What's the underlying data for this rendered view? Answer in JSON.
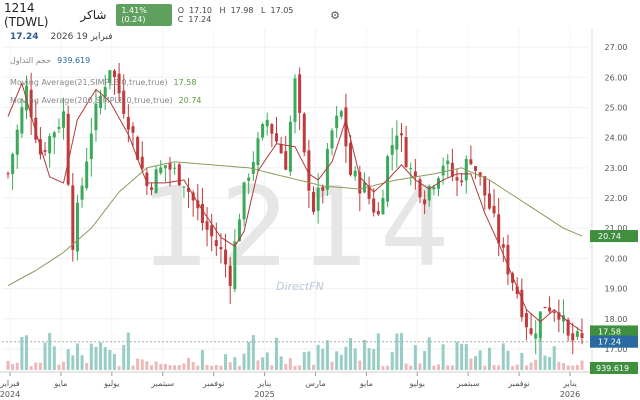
{
  "header": {
    "symbol": "1214 (TDWL)",
    "name": "شاكر",
    "change": "1.41%(0.24)",
    "open_label": "O",
    "open": "17.10",
    "high_label": "H",
    "high": "17.98",
    "low_label": "L",
    "low": "17.05",
    "close_label": "C",
    "close": "17.24",
    "gear_icon": "gear-icon"
  },
  "subheader": {
    "price": "17.24",
    "date": "فبراير 19 2026"
  },
  "legends": {
    "volume_label": "حجم التداول",
    "volume_value": "939.619",
    "ma1_label": "Moving Average(21,SIMPLE,0,true,true)",
    "ma1_value": "17.58",
    "ma2_label": "Moving Average(200,SIMPLE,0,true,true)",
    "ma2_value": "20.74"
  },
  "watermark": {
    "symbol": "1214",
    "brand": "DirectFN"
  },
  "colors": {
    "up": "#3aaa5a",
    "down": "#c0393b",
    "ma21": "#b03a3a",
    "ma200": "#8a9a5a",
    "vol": "#7dc0b5",
    "badge_green": "#3f8f3f",
    "badge_blue": "#2a6aa0"
  },
  "chart_data": {
    "type": "candlestick",
    "y_ticks": [
      "27.00",
      "26.00",
      "25.00",
      "24.00",
      "23.00",
      "22.00",
      "21.00",
      "20.00",
      "19.00",
      "18.00",
      "17.00"
    ],
    "ylim": [
      16.8,
      27.5
    ],
    "x_ticks": [
      {
        "label": "فبراير",
        "year": "2024"
      },
      {
        "label": "مايو",
        "year": ""
      },
      {
        "label": "يوليو",
        "year": ""
      },
      {
        "label": "سبتمبر",
        "year": ""
      },
      {
        "label": "نوفمبر",
        "year": ""
      },
      {
        "label": "يناير",
        "year": "2025"
      },
      {
        "label": "مارس",
        "year": ""
      },
      {
        "label": "مايو",
        "year": ""
      },
      {
        "label": "يوليو",
        "year": ""
      },
      {
        "label": "سبتمبر",
        "year": ""
      },
      {
        "label": "نوفمبر",
        "year": ""
      },
      {
        "label": "يناير",
        "year": "2026"
      }
    ],
    "price_keypoints": [
      [
        0,
        22.8
      ],
      [
        4,
        25.6
      ],
      [
        7,
        23.5
      ],
      [
        12,
        24.8
      ],
      [
        14,
        20.6
      ],
      [
        18,
        24.3
      ],
      [
        22,
        26.4
      ],
      [
        26,
        24.6
      ],
      [
        30,
        22.4
      ],
      [
        34,
        23.1
      ],
      [
        38,
        22.6
      ],
      [
        42,
        21.2
      ],
      [
        46,
        20.2
      ],
      [
        48,
        19.4
      ],
      [
        50,
        21.5
      ],
      [
        52,
        22.9
      ],
      [
        56,
        24.6
      ],
      [
        60,
        23.2
      ],
      [
        62,
        25.8
      ],
      [
        64,
        23.3
      ],
      [
        66,
        21.7
      ],
      [
        68,
        22.4
      ],
      [
        70,
        24.2
      ],
      [
        72,
        24.8
      ],
      [
        74,
        22.8
      ],
      [
        77,
        22.3
      ],
      [
        80,
        21.4
      ],
      [
        82,
        23.3
      ],
      [
        84,
        24.3
      ],
      [
        87,
        22.9
      ],
      [
        90,
        22.1
      ],
      [
        94,
        23.2
      ],
      [
        97,
        22.5
      ],
      [
        100,
        23.4
      ],
      [
        104,
        21.7
      ],
      [
        107,
        20.1
      ],
      [
        110,
        18.9
      ],
      [
        113,
        17.4
      ],
      [
        116,
        18.5
      ],
      [
        119,
        18.3
      ],
      [
        121,
        17.3
      ],
      [
        124,
        17.24
      ]
    ],
    "ma21_keypoints": [
      [
        0,
        24.7
      ],
      [
        3,
        25.8
      ],
      [
        6,
        24.2
      ],
      [
        9,
        22.7
      ],
      [
        12,
        22.5
      ],
      [
        15,
        24.6
      ],
      [
        19,
        25.6
      ],
      [
        22,
        25.2
      ],
      [
        26,
        24.1
      ],
      [
        30,
        22.5
      ],
      [
        34,
        22.5
      ],
      [
        38,
        22.6
      ],
      [
        42,
        21.6
      ],
      [
        46,
        20.7
      ],
      [
        49,
        20.4
      ],
      [
        51,
        20.9
      ],
      [
        54,
        22.9
      ],
      [
        58,
        23.8
      ],
      [
        62,
        23.7
      ],
      [
        65,
        22.8
      ],
      [
        67,
        22.6
      ],
      [
        70,
        23.2
      ],
      [
        73,
        24.6
      ],
      [
        76,
        22.7
      ],
      [
        79,
        22.2
      ],
      [
        82,
        22.6
      ],
      [
        85,
        23.1
      ],
      [
        88,
        22.6
      ],
      [
        91,
        22.3
      ],
      [
        94,
        22.6
      ],
      [
        97,
        22.8
      ],
      [
        100,
        22.8
      ],
      [
        103,
        21.5
      ],
      [
        106,
        20.5
      ],
      [
        109,
        19.4
      ],
      [
        112,
        18.3
      ],
      [
        115,
        17.9
      ],
      [
        118,
        18.3
      ],
      [
        121,
        17.9
      ],
      [
        124,
        17.58
      ]
    ],
    "ma200_keypoints": [
      [
        0,
        19.1
      ],
      [
        6,
        19.6
      ],
      [
        12,
        20.2
      ],
      [
        18,
        21.0
      ],
      [
        24,
        22.2
      ],
      [
        30,
        23.0
      ],
      [
        36,
        23.2
      ],
      [
        44,
        23.1
      ],
      [
        52,
        23.0
      ],
      [
        60,
        22.7
      ],
      [
        68,
        22.4
      ],
      [
        76,
        22.3
      ],
      [
        84,
        22.6
      ],
      [
        92,
        22.8
      ],
      [
        98,
        23.0
      ],
      [
        104,
        22.6
      ],
      [
        110,
        22.0
      ],
      [
        116,
        21.4
      ],
      [
        120,
        21.0
      ],
      [
        124,
        20.74
      ]
    ],
    "volume_max": 939.619,
    "last_volume": "939.619",
    "right_labels": [
      {
        "value": 20.74,
        "text": "20.74",
        "color_key": "badge_green"
      },
      {
        "value": 17.58,
        "text": "17.58",
        "color_key": "badge_green"
      },
      {
        "value": 17.24,
        "text": "17.24",
        "color_key": "badge_blue"
      }
    ]
  }
}
